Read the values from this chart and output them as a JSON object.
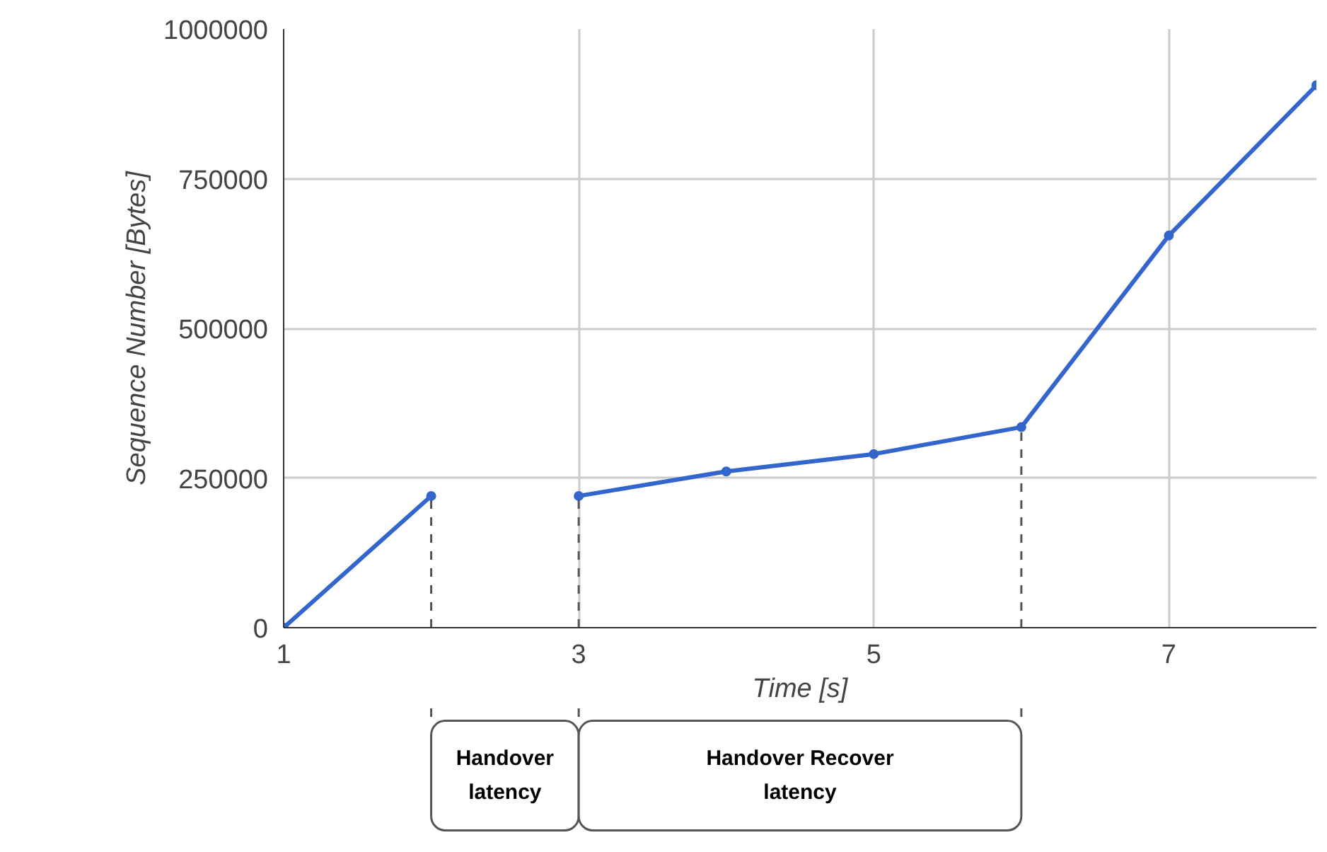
{
  "chart_data": {
    "type": "line",
    "xlabel": "Time [s]",
    "ylabel": "Sequence Number [Bytes]",
    "series": [
      {
        "color": "#3366cc",
        "x": [
          1,
          2
        ],
        "values": [
          0,
          220000
        ]
      },
      {
        "color": "#3366cc",
        "x": [
          3,
          4,
          5,
          6,
          7,
          8
        ],
        "values": [
          220000,
          261000,
          290000,
          335000,
          655000,
          906000
        ]
      }
    ],
    "xlim": [
      1,
      8
    ],
    "ylim": [
      0,
      1000000
    ],
    "xticks": [
      1,
      3,
      5,
      7
    ],
    "yticks": [
      0,
      250000,
      500000,
      750000,
      1000000
    ],
    "grid": true,
    "marker": "circle",
    "line_style": "solid",
    "ref_lines": [
      {
        "axis": "x",
        "value": 2,
        "line_style": "dashed",
        "color": "#555555"
      },
      {
        "axis": "x",
        "value": 3,
        "line_style": "dashed",
        "color": "#555555"
      },
      {
        "axis": "x",
        "value": 6,
        "line_style": "dashed",
        "color": "#555555"
      }
    ],
    "annotations": [
      "Handover\nlatency",
      "Handover Recover\nlatency"
    ]
  }
}
